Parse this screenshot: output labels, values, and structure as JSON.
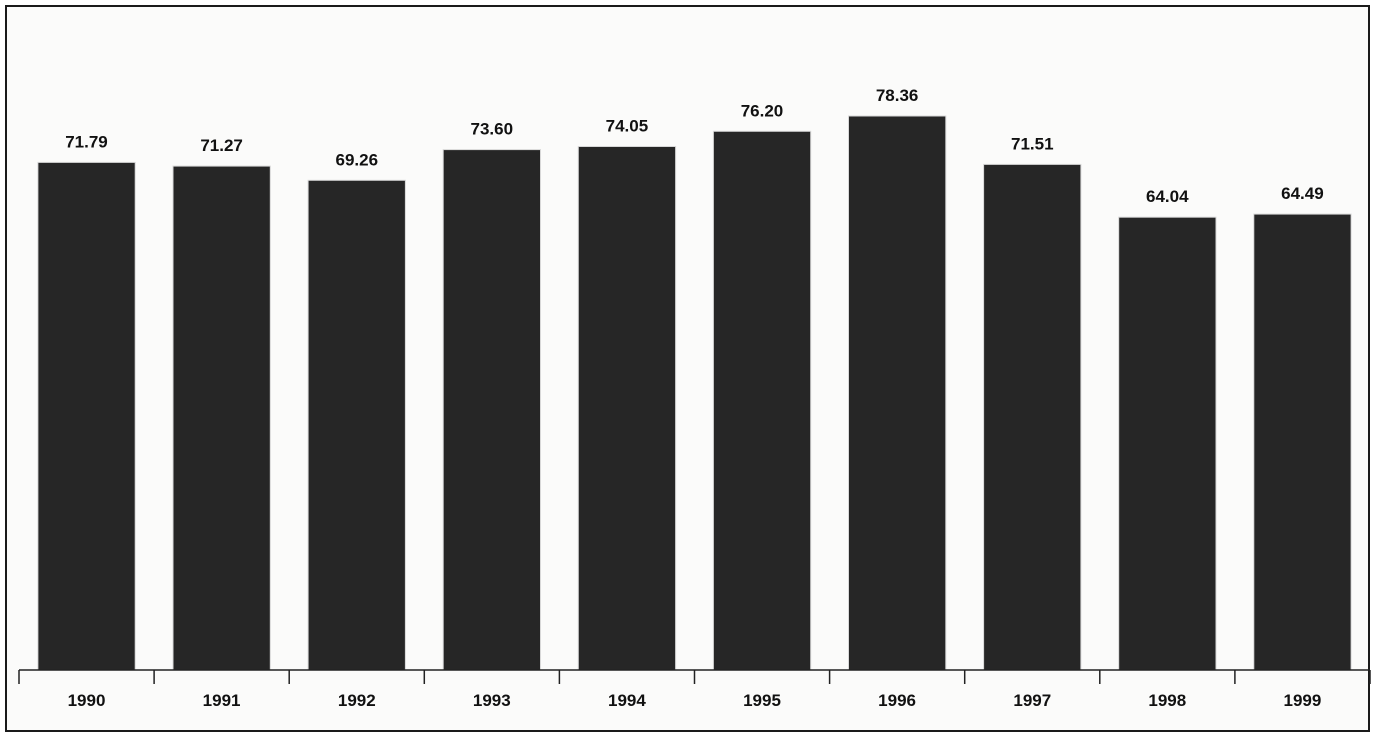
{
  "chart_data": {
    "type": "bar",
    "title": "",
    "xlabel": "",
    "ylabel": "",
    "categories": [
      "1990",
      "1991",
      "1992",
      "1993",
      "1994",
      "1995",
      "1996",
      "1997",
      "1998",
      "1999"
    ],
    "values": [
      71.79,
      71.27,
      69.26,
      73.6,
      74.05,
      76.2,
      78.36,
      71.51,
      64.04,
      64.49
    ],
    "value_labels": [
      "71.79",
      "71.27",
      "69.26",
      "73.60",
      "74.05",
      "76.20",
      "78.36",
      "71.51",
      "64.04",
      "64.49"
    ],
    "ylim": [
      0,
      100
    ],
    "grid": false,
    "legend": "none",
    "colors": {
      "bar": "#262626",
      "background": "#fbfbfa"
    }
  }
}
